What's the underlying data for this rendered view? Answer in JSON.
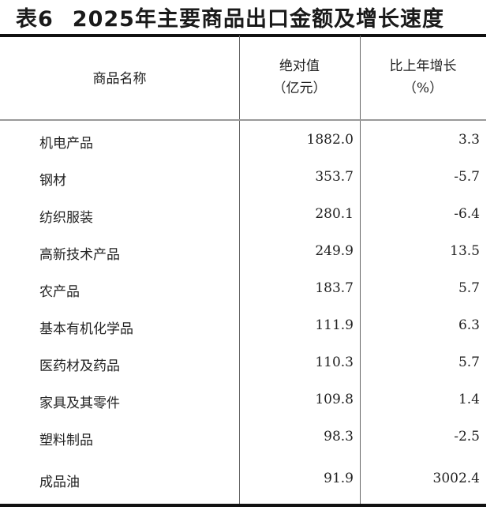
{
  "title": {
    "label": "表6",
    "text": "2025年主要商品出口金额及增长速度"
  },
  "headers": {
    "name": "商品名称",
    "value_line1": "绝对值",
    "value_line2": "（亿元）",
    "growth_line1": "比上年增长",
    "growth_line2": "（%）"
  },
  "rows": [
    {
      "name": "机电产品",
      "value": "1882.0",
      "growth": "3.3"
    },
    {
      "name": "钢材",
      "value": "353.7",
      "growth": "-5.7"
    },
    {
      "name": "纺织服装",
      "value": "280.1",
      "growth": "-6.4"
    },
    {
      "name": "高新技术产品",
      "value": "249.9",
      "growth": "13.5"
    },
    {
      "name": "农产品",
      "value": "183.7",
      "growth": "5.7"
    },
    {
      "name": "基本有机化学品",
      "value": "111.9",
      "growth": "6.3"
    },
    {
      "name": "医药材及药品",
      "value": "110.3",
      "growth": "5.7"
    },
    {
      "name": "家具及其零件",
      "value": "109.8",
      "growth": "1.4"
    },
    {
      "name": "塑料制品",
      "value": "98.3",
      "growth": "-2.5"
    },
    {
      "name": "成品油",
      "value": "91.9",
      "growth": "3002.4"
    }
  ]
}
